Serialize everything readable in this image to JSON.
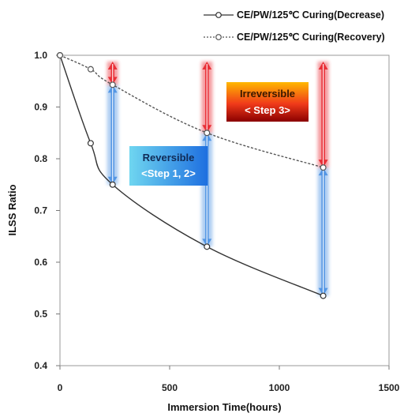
{
  "chart_data": {
    "type": "line",
    "xlabel": "Immersion  Time(hours)",
    "ylabel": "ILSS Ratio",
    "xlim": [
      0,
      1500
    ],
    "ylim": [
      0.4,
      1.0
    ],
    "xticks": [
      0,
      500,
      1000,
      1500
    ],
    "yticks": [
      0.4,
      0.5,
      0.6,
      0.7,
      0.8,
      0.9,
      1.0
    ],
    "grid": false,
    "legend_position": "top-right",
    "series": [
      {
        "name": "CE/PW/125℃ Curing(Decrease)",
        "line_style": "solid",
        "marker": "open-circle",
        "color": "#333333",
        "x": [
          0,
          140,
          240,
          670,
          1200
        ],
        "y": [
          1.0,
          0.83,
          0.75,
          0.63,
          0.535
        ]
      },
      {
        "name": "CE/PW/125℃ Curing(Recovery)",
        "line_style": "dashed",
        "marker": "open-circle",
        "color": "#555555",
        "x": [
          0,
          140,
          240,
          670,
          1200
        ],
        "y": [
          1.0,
          0.973,
          0.943,
          0.85,
          0.783
        ]
      }
    ],
    "annotations": [
      {
        "label_line1": "Reversible",
        "label_line2": "<Step 1, 2>",
        "color": "#1e90ff"
      },
      {
        "label_line1": "Irreversible",
        "label_line2": "< Step 3>",
        "color": "#e8232b"
      }
    ],
    "arrows": {
      "reversible_color": "#4a90e2",
      "irreversible_color": "#e8232b",
      "segments": [
        {
          "x": 240,
          "from": 0.75,
          "to": 0.943,
          "upper_to": 1.0
        },
        {
          "x": 670,
          "from": 0.63,
          "to": 0.85,
          "upper_to": 1.0
        },
        {
          "x": 1200,
          "from": 0.535,
          "to": 0.783,
          "upper_to": 1.0
        }
      ]
    }
  }
}
